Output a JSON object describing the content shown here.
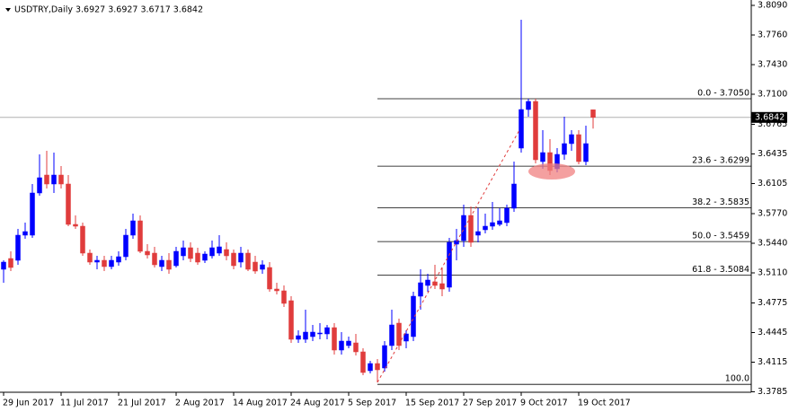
{
  "chart_data": {
    "type": "candlestick",
    "title": "USDTRY,Daily  3.6927 3.6927 3.6717 3.6842",
    "categories": [
      "29 Jun 2017",
      null,
      null,
      null,
      null,
      null,
      null,
      null,
      "11 Jul 2017",
      null,
      null,
      null,
      null,
      null,
      null,
      null,
      "21 Jul 2017",
      null,
      null,
      null,
      null,
      null,
      null,
      null,
      "2 Aug 2017",
      null,
      null,
      null,
      null,
      null,
      null,
      null,
      "14 Aug 2017",
      null,
      null,
      null,
      null,
      null,
      null,
      null,
      "24 Aug 2017",
      null,
      null,
      null,
      null,
      null,
      null,
      null,
      "5 Sep 2017",
      null,
      null,
      null,
      null,
      null,
      null,
      null,
      "15 Sep 2017",
      null,
      null,
      null,
      null,
      null,
      null,
      null,
      "27 Sep 2017",
      null,
      null,
      null,
      null,
      null,
      null,
      null,
      "9 Oct 2017",
      null,
      null,
      null,
      null,
      null,
      null,
      null,
      "19 Oct 2017",
      null,
      null
    ],
    "open": [
      3.515,
      3.527,
      3.525,
      3.553,
      3.553,
      3.6,
      3.62,
      3.61,
      3.62,
      3.61,
      3.565,
      3.563,
      3.533,
      3.523,
      3.525,
      3.518,
      3.523,
      3.529,
      3.553,
      3.569,
      3.535,
      3.533,
      3.518,
      3.525,
      3.519,
      3.53,
      3.539,
      3.533,
      3.525,
      3.53,
      3.533,
      3.537,
      3.533,
      3.523,
      3.533,
      3.523,
      3.515,
      3.517,
      3.493,
      3.491,
      3.48,
      3.437,
      3.437,
      3.44,
      3.443,
      3.443,
      3.45,
      3.425,
      3.43,
      3.433,
      3.423,
      3.402,
      3.41,
      3.405,
      3.43,
      3.455,
      3.435,
      3.44,
      3.485,
      3.497,
      3.501,
      3.499,
      3.495,
      3.543,
      3.547,
      3.575,
      3.553,
      3.559,
      3.563,
      3.565,
      3.567,
      3.583,
      3.65,
      3.693,
      3.702,
      3.635,
      3.645,
      3.627,
      3.643,
      3.655,
      3.665,
      3.635,
      3.6927
    ],
    "high": [
      3.525,
      3.535,
      3.56,
      3.567,
      3.61,
      3.643,
      3.647,
      3.645,
      3.63,
      3.62,
      3.575,
      3.567,
      3.537,
      3.53,
      3.53,
      3.53,
      3.535,
      3.56,
      3.577,
      3.575,
      3.543,
      3.54,
      3.53,
      3.533,
      3.54,
      3.547,
      3.545,
      3.539,
      3.535,
      3.547,
      3.553,
      3.545,
      3.537,
      3.54,
      3.537,
      3.53,
      3.525,
      3.523,
      3.5,
      3.497,
      3.485,
      3.447,
      3.47,
      3.453,
      3.455,
      3.453,
      3.455,
      3.445,
      3.44,
      3.443,
      3.427,
      3.413,
      3.415,
      3.435,
      3.47,
      3.46,
      3.447,
      3.49,
      3.515,
      3.51,
      3.52,
      3.517,
      3.55,
      3.56,
      3.587,
      3.585,
      3.583,
      3.577,
      3.59,
      3.583,
      3.587,
      3.635,
      3.793,
      3.705,
      3.705,
      3.67,
      3.66,
      3.65,
      3.685,
      3.67,
      3.67,
      3.675,
      3.6927
    ],
    "low": [
      3.5,
      3.513,
      3.52,
      3.549,
      3.55,
      3.597,
      3.605,
      3.6,
      3.605,
      3.563,
      3.56,
      3.53,
      3.52,
      3.515,
      3.513,
      3.515,
      3.519,
      3.525,
      3.549,
      3.533,
      3.527,
      3.517,
      3.513,
      3.51,
      3.517,
      3.525,
      3.523,
      3.52,
      3.522,
      3.527,
      3.53,
      3.525,
      3.515,
      3.517,
      3.513,
      3.51,
      3.51,
      3.49,
      3.487,
      3.473,
      3.433,
      3.433,
      3.433,
      3.435,
      3.437,
      3.437,
      3.42,
      3.42,
      3.427,
      3.419,
      3.397,
      3.399,
      3.389,
      3.401,
      3.425,
      3.425,
      3.427,
      3.435,
      3.47,
      3.49,
      3.493,
      3.485,
      3.49,
      3.525,
      3.54,
      3.54,
      3.545,
      3.555,
      3.559,
      3.563,
      3.563,
      3.579,
      3.645,
      3.685,
      3.633,
      3.627,
      3.62,
      3.623,
      3.637,
      3.647,
      3.632,
      3.631,
      3.6717
    ],
    "close": [
      3.523,
      3.517,
      3.553,
      3.557,
      3.6,
      3.617,
      3.61,
      3.62,
      3.61,
      3.565,
      3.563,
      3.533,
      3.523,
      3.525,
      3.518,
      3.525,
      3.529,
      3.553,
      3.569,
      3.535,
      3.531,
      3.52,
      3.525,
      3.515,
      3.535,
      3.539,
      3.527,
      3.523,
      3.532,
      3.539,
      3.54,
      3.53,
      3.519,
      3.533,
      3.515,
      3.513,
      3.52,
      3.493,
      3.491,
      3.477,
      3.437,
      3.441,
      3.445,
      3.445,
      3.444,
      3.45,
      3.425,
      3.435,
      3.435,
      3.423,
      3.4,
      3.41,
      3.403,
      3.43,
      3.453,
      3.43,
      3.443,
      3.485,
      3.5,
      3.503,
      3.497,
      3.493,
      3.545,
      3.547,
      3.575,
      3.545,
      3.557,
      3.563,
      3.567,
      3.569,
      3.583,
      3.61,
      3.693,
      3.702,
      3.637,
      3.645,
      3.625,
      3.643,
      3.655,
      3.665,
      3.635,
      3.655,
      3.6842
    ],
    "up_color": "#0000ff",
    "down_color": "#e03c3c",
    "ylim": [
      3.378,
      3.815
    ],
    "yticks": [
      {
        "value": 3.809,
        "label": "3.8090"
      },
      {
        "value": 3.776,
        "label": "3.7760"
      },
      {
        "value": 3.743,
        "label": "3.7430"
      },
      {
        "value": 3.71,
        "label": "3.7100"
      },
      {
        "value": 3.6765,
        "label": "3.6765"
      },
      {
        "value": 3.6435,
        "label": "3.6435"
      },
      {
        "value": 3.6105,
        "label": "3.6105"
      },
      {
        "value": 3.577,
        "label": "3.5770"
      },
      {
        "value": 3.544,
        "label": "3.5440"
      },
      {
        "value": 3.511,
        "label": "3.5110"
      },
      {
        "value": 3.4775,
        "label": "3.4775"
      },
      {
        "value": 3.4445,
        "label": "3.4445"
      },
      {
        "value": 3.4115,
        "label": "3.4115"
      },
      {
        "value": 3.3785,
        "label": "3.3785"
      }
    ],
    "current_price": {
      "value": 3.6842,
      "label": "3.6842"
    },
    "fib_levels": [
      {
        "value": 3.705,
        "label": "0.0 - 3.7050"
      },
      {
        "value": 3.6299,
        "label": "23.6 - 3.6299"
      },
      {
        "value": 3.5835,
        "label": "38.2 - 3.5835"
      },
      {
        "value": 3.5459,
        "label": "50.0 - 3.5459"
      },
      {
        "value": 3.5084,
        "label": "61.8 - 3.5084"
      },
      {
        "value": 3.3868,
        "label": "100.0"
      }
    ]
  }
}
